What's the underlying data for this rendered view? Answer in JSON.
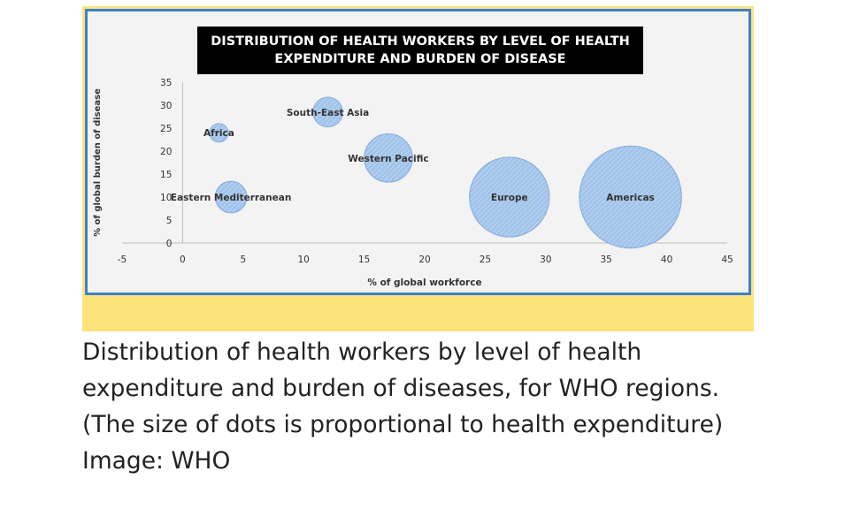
{
  "colors": {
    "frame": "#fce37a",
    "border": "#3f7fcf",
    "bubble_fill": "#9cc1ea",
    "bubble_stroke": "#7aa8dc"
  },
  "chart_data": {
    "type": "scatter",
    "title": "DISTRIBUTION OF HEALTH WORKERS BY LEVEL OF HEALTH EXPENDITURE AND BURDEN OF DISEASE",
    "xlabel": "% of global workforce",
    "ylabel": "% of global burden of disease",
    "xlim": [
      -5,
      45
    ],
    "ylim": [
      0,
      35
    ],
    "x_ticks": [
      -5,
      0,
      5,
      10,
      15,
      20,
      25,
      30,
      35,
      40,
      45
    ],
    "y_ticks": [
      0,
      5,
      10,
      15,
      20,
      25,
      30,
      35
    ],
    "grid": false,
    "bubble_size_meaning": "health expenditure (relative)",
    "points": [
      {
        "label": "Africa",
        "x": 3,
        "y": 24,
        "size": 1
      },
      {
        "label": "South-East Asia",
        "x": 12,
        "y": 28.5,
        "size": 1.6
      },
      {
        "label": "Western Pacific",
        "x": 17,
        "y": 18.5,
        "size": 2.6
      },
      {
        "label": "Eastern Mediterranean",
        "x": 4,
        "y": 10,
        "size": 1.7
      },
      {
        "label": "Europe",
        "x": 27,
        "y": 10,
        "size": 4.3
      },
      {
        "label": "Americas",
        "x": 37,
        "y": 10,
        "size": 5.5
      }
    ]
  },
  "caption": {
    "line1": "Distribution of health workers by level of health",
    "line2": "expenditure and burden of diseases, for WHO regions.",
    "line3": "(The size of dots is proportional to health expenditure)",
    "line4": "Image: WHO"
  }
}
